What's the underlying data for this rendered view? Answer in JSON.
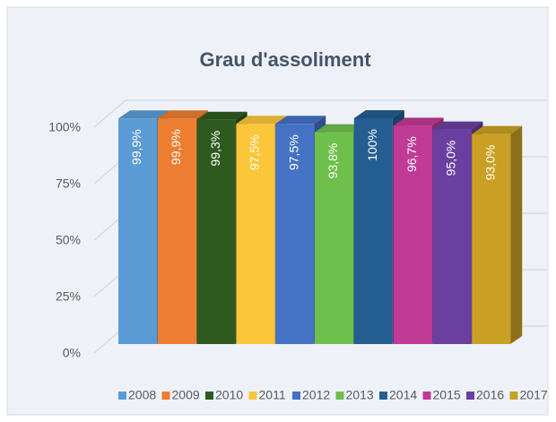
{
  "chart_data": {
    "type": "bar3d",
    "title": "Grau d'assoliment",
    "ylim": [
      0,
      100
    ],
    "yticks": [
      {
        "value": 0,
        "label": "0%"
      },
      {
        "value": 25,
        "label": "25%"
      },
      {
        "value": 50,
        "label": "50%"
      },
      {
        "value": 75,
        "label": "75%"
      },
      {
        "value": 100,
        "label": "100%"
      }
    ],
    "grid": true,
    "legend": "bottom",
    "series": [
      {
        "name": "2008",
        "color": "#5b9bd5",
        "values": [
          99.9
        ],
        "value_labels": [
          "99,9%"
        ]
      },
      {
        "name": "2009",
        "color": "#ed7d31",
        "values": [
          99.9
        ],
        "value_labels": [
          "99,9%"
        ]
      },
      {
        "name": "2010",
        "color": "#2f5a1f",
        "values": [
          99.3
        ],
        "value_labels": [
          "99,3%"
        ]
      },
      {
        "name": "2011",
        "color": "#fcc63a",
        "values": [
          97.5
        ],
        "value_labels": [
          "97,5%"
        ]
      },
      {
        "name": "2012",
        "color": "#4472c4",
        "values": [
          97.5
        ],
        "value_labels": [
          "97,5%"
        ]
      },
      {
        "name": "2013",
        "color": "#6fbf4c",
        "values": [
          93.8
        ],
        "value_labels": [
          "93,8%"
        ]
      },
      {
        "name": "2014",
        "color": "#255e91",
        "values": [
          100
        ],
        "value_labels": [
          "100%"
        ]
      },
      {
        "name": "2015",
        "color": "#c13a96",
        "values": [
          96.7
        ],
        "value_labels": [
          "96,7%"
        ]
      },
      {
        "name": "2016",
        "color": "#6b3fa0",
        "values": [
          95.0
        ],
        "value_labels": [
          "95,0%"
        ]
      },
      {
        "name": "2017",
        "color": "#c9a024",
        "values": [
          93.0
        ],
        "value_labels": [
          "93,0%"
        ]
      }
    ]
  }
}
